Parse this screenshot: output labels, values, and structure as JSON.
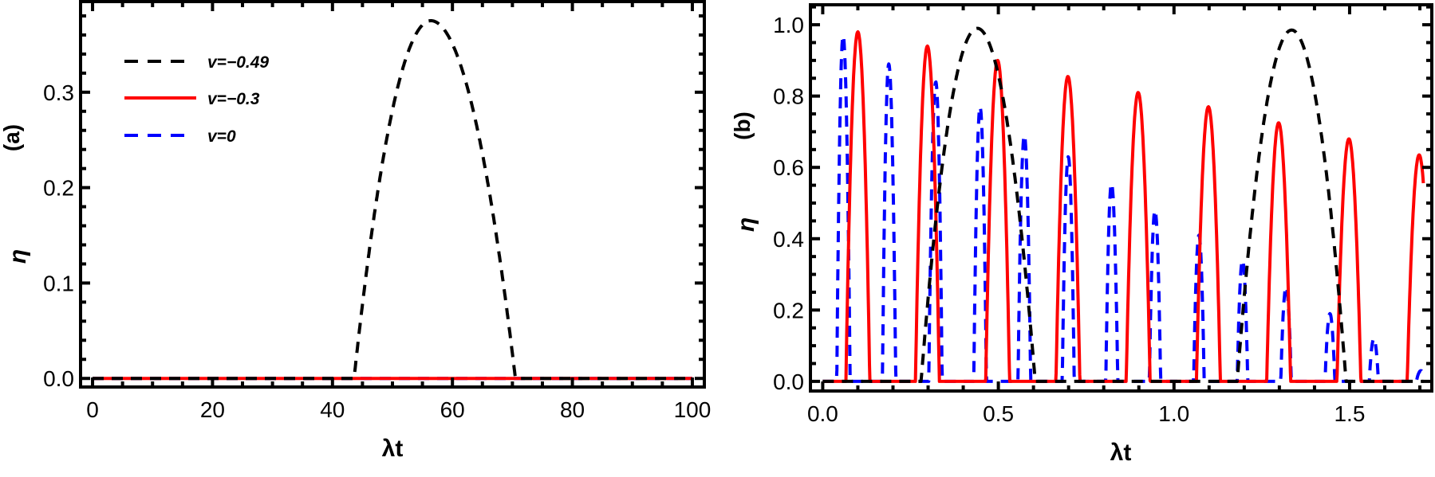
{
  "chart_data": [
    {
      "panel_label": "(a)",
      "type": "line",
      "xlabel": "λt",
      "ylabel": "η",
      "xlim": [
        -2,
        102
      ],
      "ylim": [
        -0.009,
        0.395
      ],
      "xticks": [
        0,
        20,
        40,
        60,
        80,
        100
      ],
      "xtick_labels": [
        "0",
        "20",
        "40",
        "60",
        "80",
        "100"
      ],
      "yticks": [
        0.0,
        0.1,
        0.2,
        0.3
      ],
      "ytick_labels": [
        "0.0",
        "0.1",
        "0.2",
        "0.3"
      ],
      "grid": false,
      "legend": {
        "position": "upper-left",
        "entries": [
          {
            "label": "v=−0.49",
            "color": "#000000",
            "style": "dashed"
          },
          {
            "label": "v=−0.3",
            "color": "#ff0000",
            "style": "solid"
          },
          {
            "label": "v=0",
            "color": "#0000ff",
            "style": "dashed"
          }
        ]
      },
      "series": [
        {
          "name": "v=−0.49",
          "color": "#000000",
          "style": "dashed",
          "segments": [
            {
              "type": "flat",
              "from": 0,
              "to": 43.6
            },
            {
              "type": "arch",
              "start": 43.6,
              "end": 70.5,
              "peak_x": 56.4,
              "peak_y": 0.375
            },
            {
              "type": "flat",
              "from": 70.5,
              "to": 100
            }
          ]
        },
        {
          "name": "v=−0.3",
          "color": "#ff0000",
          "style": "solid",
          "segments": [
            {
              "type": "flat",
              "from": 0,
              "to": 100
            }
          ]
        },
        {
          "name": "v=0",
          "color": "#0000ff",
          "style": "dashed",
          "segments": [
            {
              "type": "flat",
              "from": 0,
              "to": 100
            }
          ]
        }
      ]
    },
    {
      "panel_label": "(b)",
      "type": "line",
      "xlabel": "λt",
      "ylabel": "η",
      "xlim": [
        -0.035,
        1.734
      ],
      "ylim": [
        -0.027,
        1.056
      ],
      "xticks": [
        0.0,
        0.5,
        1.0,
        1.5
      ],
      "xtick_labels": [
        "0.0",
        "0.5",
        "1.0",
        "1.5"
      ],
      "yticks": [
        0.0,
        0.2,
        0.4,
        0.6,
        0.8,
        1.0
      ],
      "ytick_labels": [
        "0.0",
        "0.2",
        "0.4",
        "0.6",
        "0.8",
        "1.0"
      ],
      "grid": false,
      "x_end": 1.71,
      "series": [
        {
          "name": "v=−0.49",
          "color": "#000000",
          "style": "dashed",
          "arches": [
            {
              "start": 0.28,
              "end": 0.605,
              "peak_x": 0.44,
              "peak_y": 0.99
            },
            {
              "start": 1.18,
              "end": 1.49,
              "peak_x": 1.335,
              "peak_y": 0.985
            }
          ]
        },
        {
          "name": "v=−0.3",
          "color": "#ff0000",
          "style": "solid",
          "arches": [
            {
              "start": 0.066,
              "end": 0.134,
              "peak_x": 0.1,
              "peak_y": 0.98
            },
            {
              "start": 0.264,
              "end": 0.332,
              "peak_x": 0.298,
              "peak_y": 0.94
            },
            {
              "start": 0.464,
              "end": 0.532,
              "peak_x": 0.498,
              "peak_y": 0.9
            },
            {
              "start": 0.664,
              "end": 0.732,
              "peak_x": 0.698,
              "peak_y": 0.855
            },
            {
              "start": 0.864,
              "end": 0.932,
              "peak_x": 0.898,
              "peak_y": 0.81
            },
            {
              "start": 1.064,
              "end": 1.132,
              "peak_x": 1.098,
              "peak_y": 0.77
            },
            {
              "start": 1.264,
              "end": 1.332,
              "peak_x": 1.298,
              "peak_y": 0.725
            },
            {
              "start": 1.464,
              "end": 1.532,
              "peak_x": 1.498,
              "peak_y": 0.68
            },
            {
              "start": 1.664,
              "end": 1.732,
              "peak_x": 1.698,
              "peak_y": 0.635
            }
          ]
        },
        {
          "name": "v=0",
          "color": "#0000ff",
          "style": "dashed",
          "arches": [
            {
              "start": 0.04,
              "end": 0.078,
              "peak_x": 0.058,
              "peak_y": 0.97
            },
            {
              "start": 0.17,
              "end": 0.208,
              "peak_x": 0.188,
              "peak_y": 0.89
            },
            {
              "start": 0.302,
              "end": 0.34,
              "peak_x": 0.322,
              "peak_y": 0.84
            },
            {
              "start": 0.43,
              "end": 0.466,
              "peak_x": 0.448,
              "peak_y": 0.77
            },
            {
              "start": 0.556,
              "end": 0.592,
              "peak_x": 0.574,
              "peak_y": 0.69
            },
            {
              "start": 0.682,
              "end": 0.716,
              "peak_x": 0.699,
              "peak_y": 0.63
            },
            {
              "start": 0.806,
              "end": 0.84,
              "peak_x": 0.822,
              "peak_y": 0.555
            },
            {
              "start": 0.93,
              "end": 0.962,
              "peak_x": 0.946,
              "peak_y": 0.48
            },
            {
              "start": 1.056,
              "end": 1.086,
              "peak_x": 1.071,
              "peak_y": 0.41
            },
            {
              "start": 1.18,
              "end": 1.21,
              "peak_x": 1.195,
              "peak_y": 0.34
            },
            {
              "start": 1.304,
              "end": 1.334,
              "peak_x": 1.319,
              "peak_y": 0.265
            },
            {
              "start": 1.43,
              "end": 1.458,
              "peak_x": 1.444,
              "peak_y": 0.19
            },
            {
              "start": 1.556,
              "end": 1.582,
              "peak_x": 1.569,
              "peak_y": 0.12
            },
            {
              "start": 1.69,
              "end": 1.716,
              "peak_x": 1.703,
              "peak_y": 0.03
            }
          ]
        }
      ]
    }
  ]
}
